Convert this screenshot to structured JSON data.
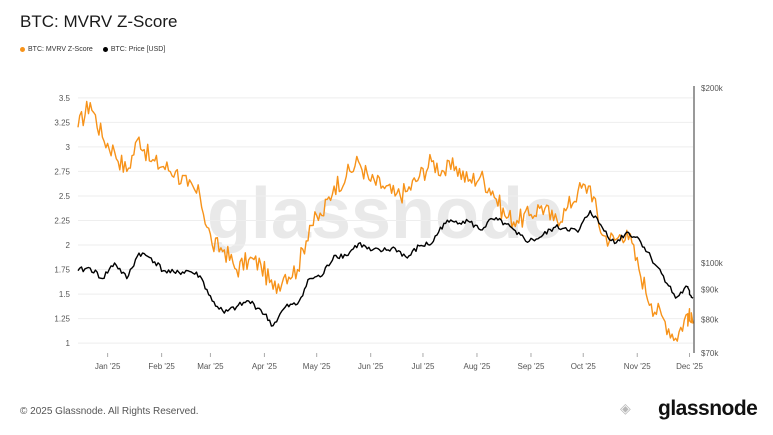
{
  "title": "BTC: MVRV Z-Score",
  "legend": [
    {
      "label": "BTC: MVRV Z-Score",
      "color": "#f7931a"
    },
    {
      "label": "BTC: Price [USD]",
      "color": "#000000"
    }
  ],
  "footer": "© 2025 Glassnode. All Rights Reserved.",
  "brand": "glassnode",
  "watermark": "glassnode",
  "chart_data": {
    "type": "line",
    "x_ticks": [
      "Jan '25",
      "Feb '25",
      "Mar '25",
      "Apr '25",
      "May '25",
      "Jun '25",
      "Jul '25",
      "Aug '25",
      "Sep '25",
      "Oct '25",
      "Nov '25",
      "Dec '25"
    ],
    "y_left_ticks": [
      "1",
      "1.25",
      "1.5",
      "1.75",
      "2",
      "2.25",
      "2.5",
      "2.75",
      "3",
      "3.25",
      "3.5"
    ],
    "y_left_lim": [
      0.9,
      3.6
    ],
    "y_right_ticks": [
      "$70k",
      "$80k",
      "$90k",
      "$100k",
      "$200k"
    ],
    "y_right_scale": "log",
    "y_right_lim": [
      70000,
      200000
    ],
    "grid": true,
    "legend_position": "top-left",
    "series": [
      {
        "name": "BTC: MVRV Z-Score",
        "axis": "left",
        "color": "#f7931a",
        "x": [
          "2024-12-15",
          "2024-12-22",
          "2024-12-29",
          "2025-01-05",
          "2025-01-12",
          "2025-01-19",
          "2025-01-26",
          "2025-02-02",
          "2025-02-09",
          "2025-02-16",
          "2025-02-23",
          "2025-03-02",
          "2025-03-09",
          "2025-03-16",
          "2025-03-23",
          "2025-03-30",
          "2025-04-06",
          "2025-04-13",
          "2025-04-20",
          "2025-04-27",
          "2025-05-04",
          "2025-05-11",
          "2025-05-18",
          "2025-05-25",
          "2025-06-01",
          "2025-06-08",
          "2025-06-15",
          "2025-06-22",
          "2025-06-29",
          "2025-07-06",
          "2025-07-13",
          "2025-07-20",
          "2025-07-27",
          "2025-08-03",
          "2025-08-10",
          "2025-08-17",
          "2025-08-24",
          "2025-08-31",
          "2025-09-07",
          "2025-09-14",
          "2025-09-21",
          "2025-09-28",
          "2025-10-05",
          "2025-10-12",
          "2025-10-19",
          "2025-10-26",
          "2025-11-02",
          "2025-11-09",
          "2025-11-16",
          "2025-11-23",
          "2025-11-30",
          "2025-12-03"
        ],
        "values": [
          3.2,
          3.45,
          3.1,
          2.95,
          2.75,
          3.1,
          2.85,
          2.8,
          2.75,
          2.6,
          2.5,
          2.0,
          1.95,
          1.75,
          1.85,
          1.8,
          1.55,
          1.7,
          1.75,
          2.2,
          2.3,
          2.6,
          2.7,
          2.85,
          2.65,
          2.6,
          2.5,
          2.55,
          2.7,
          2.85,
          2.75,
          2.8,
          2.65,
          2.7,
          2.55,
          2.3,
          2.25,
          2.3,
          2.4,
          2.25,
          2.35,
          2.55,
          2.6,
          2.1,
          2.05,
          2.15,
          1.75,
          1.4,
          1.25,
          1.05,
          1.3,
          1.2
        ]
      },
      {
        "name": "BTC: Price [USD]",
        "axis": "right",
        "color": "#000000",
        "x": [
          "2024-12-15",
          "2024-12-22",
          "2024-12-29",
          "2025-01-05",
          "2025-01-12",
          "2025-01-19",
          "2025-01-26",
          "2025-02-02",
          "2025-02-09",
          "2025-02-16",
          "2025-02-23",
          "2025-03-02",
          "2025-03-09",
          "2025-03-16",
          "2025-03-23",
          "2025-03-30",
          "2025-04-06",
          "2025-04-13",
          "2025-04-20",
          "2025-04-27",
          "2025-05-04",
          "2025-05-11",
          "2025-05-18",
          "2025-05-25",
          "2025-06-01",
          "2025-06-08",
          "2025-06-15",
          "2025-06-22",
          "2025-06-29",
          "2025-07-06",
          "2025-07-13",
          "2025-07-20",
          "2025-07-27",
          "2025-08-03",
          "2025-08-10",
          "2025-08-17",
          "2025-08-24",
          "2025-08-31",
          "2025-09-07",
          "2025-09-14",
          "2025-09-21",
          "2025-09-28",
          "2025-10-05",
          "2025-10-12",
          "2025-10-19",
          "2025-10-26",
          "2025-11-02",
          "2025-11-09",
          "2025-11-16",
          "2025-11-23",
          "2025-11-30",
          "2025-12-03"
        ],
        "values": [
          97000,
          98000,
          94000,
          100000,
          94000,
          104000,
          102000,
          97000,
          96000,
          97000,
          95000,
          86000,
          82000,
          84000,
          86000,
          83000,
          78000,
          84000,
          85000,
          94000,
          95000,
          103000,
          103000,
          108000,
          105000,
          105000,
          106000,
          102000,
          107000,
          108000,
          117000,
          118000,
          118000,
          114000,
          119000,
          117000,
          112000,
          109000,
          111000,
          115000,
          115000,
          113000,
          123000,
          115000,
          108000,
          113000,
          110000,
          102000,
          95000,
          87000,
          91000,
          87000
        ]
      }
    ]
  }
}
